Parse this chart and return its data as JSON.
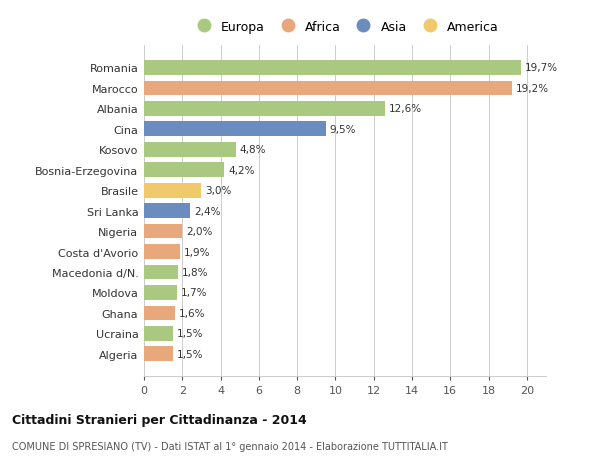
{
  "countries": [
    "Algeria",
    "Ucraina",
    "Ghana",
    "Moldova",
    "Macedonia d/N.",
    "Costa d'Avorio",
    "Nigeria",
    "Sri Lanka",
    "Brasile",
    "Bosnia-Erzegovina",
    "Kosovo",
    "Cina",
    "Albania",
    "Marocco",
    "Romania"
  ],
  "values": [
    1.5,
    1.5,
    1.6,
    1.7,
    1.8,
    1.9,
    2.0,
    2.4,
    3.0,
    4.2,
    4.8,
    9.5,
    12.6,
    19.2,
    19.7
  ],
  "labels": [
    "1,5%",
    "1,5%",
    "1,6%",
    "1,7%",
    "1,8%",
    "1,9%",
    "2,0%",
    "2,4%",
    "3,0%",
    "4,2%",
    "4,8%",
    "9,5%",
    "12,6%",
    "19,2%",
    "19,7%"
  ],
  "continents": [
    "Africa",
    "Europa",
    "Africa",
    "Europa",
    "Europa",
    "Africa",
    "Africa",
    "Asia",
    "America",
    "Europa",
    "Europa",
    "Asia",
    "Europa",
    "Africa",
    "Europa"
  ],
  "colors": {
    "Europa": "#a8c97f",
    "Africa": "#e8a87c",
    "Asia": "#6b8cbf",
    "America": "#f0c96b"
  },
  "legend_order": [
    "Europa",
    "Africa",
    "Asia",
    "America"
  ],
  "title": "Cittadini Stranieri per Cittadinanza - 2014",
  "subtitle": "COMUNE DI SPRESIANO (TV) - Dati ISTAT al 1° gennaio 2014 - Elaborazione TUTTITALIA.IT",
  "xlim": [
    0,
    21
  ],
  "xticks": [
    0,
    2,
    4,
    6,
    8,
    10,
    12,
    14,
    16,
    18,
    20
  ],
  "bg_color": "#ffffff",
  "grid_color": "#cccccc"
}
